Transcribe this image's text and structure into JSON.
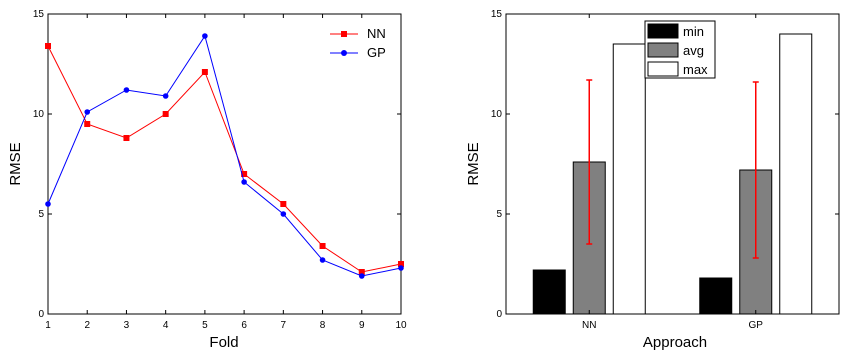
{
  "chart_data": [
    {
      "type": "line",
      "title": "",
      "xlabel": "Fold",
      "ylabel": "RMSE",
      "xlim": [
        1,
        10
      ],
      "ylim": [
        0,
        15
      ],
      "xticks": [
        "1",
        "2",
        "3",
        "4",
        "5",
        "6",
        "7",
        "8",
        "9",
        "10"
      ],
      "yticks": [
        "0",
        "5",
        "10",
        "15"
      ],
      "grid": false,
      "legend": "top-right",
      "x": [
        1,
        2,
        3,
        4,
        5,
        6,
        7,
        8,
        9,
        10
      ],
      "series": [
        {
          "name": "NN",
          "color": "#ff0000",
          "marker": "square",
          "values": [
            13.4,
            9.5,
            8.8,
            10.0,
            12.1,
            7.0,
            5.5,
            3.4,
            2.1,
            2.5
          ]
        },
        {
          "name": "GP",
          "color": "#0000ff",
          "marker": "circle",
          "values": [
            5.5,
            10.1,
            11.2,
            10.9,
            13.9,
            6.6,
            5.0,
            2.7,
            1.9,
            2.3
          ]
        }
      ]
    },
    {
      "type": "bar",
      "title": "",
      "xlabel": "Approach",
      "ylabel": "RMSE",
      "ylim": [
        0,
        15
      ],
      "yticks": [
        "0",
        "5",
        "10",
        "15"
      ],
      "grid": false,
      "legend": "top-center",
      "categories": [
        "NN",
        "GP"
      ],
      "series": [
        {
          "name": "min",
          "color": "#000000",
          "values": [
            2.2,
            1.8
          ]
        },
        {
          "name": "avg",
          "color": "#808080",
          "values": [
            7.6,
            7.2
          ]
        },
        {
          "name": "max",
          "color": "#ffffff",
          "values": [
            13.5,
            14.0
          ]
        }
      ],
      "error_bars": {
        "series": "avg",
        "color": "#ff0000",
        "low": [
          3.5,
          2.8
        ],
        "high": [
          11.7,
          11.6
        ]
      }
    }
  ]
}
